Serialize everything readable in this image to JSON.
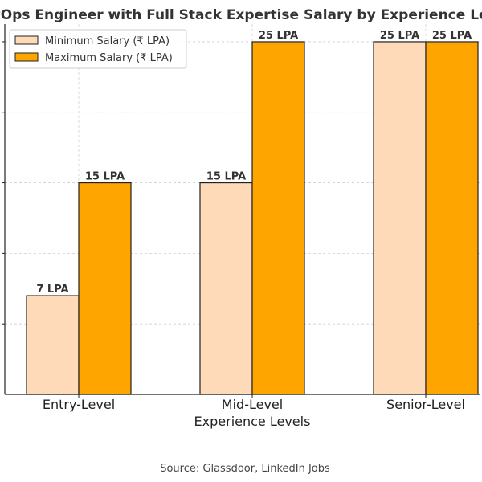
{
  "chart_data": {
    "type": "bar",
    "title": "DevOps Engineer with Full Stack Expertise Salary by Experience Level",
    "xlabel": "Experience Levels",
    "ylabel": "",
    "categories": [
      "Entry-Level",
      "Mid-Level",
      "Senior-Level"
    ],
    "series": [
      {
        "name": "Minimum Salary (₹ LPA)",
        "values": [
          7,
          15,
          25
        ],
        "labels": [
          "7 LPA",
          "15 LPA",
          "25 LPA"
        ],
        "color": "#ffdab9"
      },
      {
        "name": "Maximum Salary (₹ LPA)",
        "values": [
          15,
          25,
          25
        ],
        "labels": [
          "15 LPA",
          "25 LPA",
          "25 LPA"
        ],
        "color": "#ffa500"
      }
    ],
    "ylim": [
      0,
      26.25
    ],
    "grid": true,
    "legend_position": "top-left",
    "source_note": "Source: Glassdoor, LinkedIn Jobs"
  }
}
